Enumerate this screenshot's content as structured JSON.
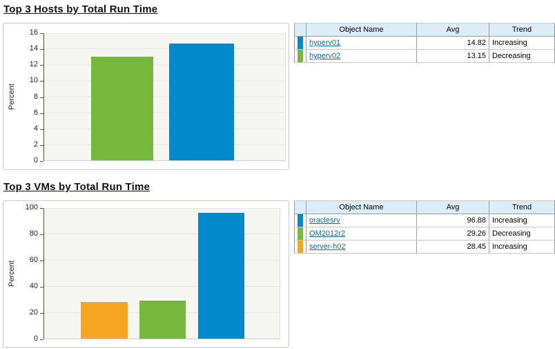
{
  "sections": [
    {
      "title": "Top 3 Hosts by Total Run Time",
      "table": {
        "headers": [
          "Object Name",
          "Avg",
          "Trend"
        ],
        "rows": [
          {
            "color": "#0089cd",
            "name": "hyperv01",
            "avg": "14.82",
            "trend": "Increasing"
          },
          {
            "color": "#76b83d",
            "name": "hyperv02",
            "avg": "13.15",
            "trend": "Decreasing"
          }
        ]
      }
    },
    {
      "title": "Top 3 VMs by Total Run Time",
      "table": {
        "headers": [
          "Object Name",
          "Avg",
          "Trend"
        ],
        "rows": [
          {
            "color": "#0089cd",
            "name": "oraclesrv",
            "avg": "96.88",
            "trend": "Increasing"
          },
          {
            "color": "#76b83d",
            "name": "OM2012r2",
            "avg": "29.26",
            "trend": "Decreasing"
          },
          {
            "color": "#f5a623",
            "name": "server-h02",
            "avg": "28.45",
            "trend": "Increasing"
          }
        ]
      }
    }
  ],
  "chart_data": [
    {
      "type": "bar",
      "title": "Top 3 Hosts by Total Run Time",
      "categories": [
        "hyperv02",
        "hyperv01"
      ],
      "values": [
        13.15,
        14.82
      ],
      "colors": [
        "#76b83d",
        "#0089cd"
      ],
      "xlabel": "",
      "ylabel": "Percent",
      "ylim": [
        0,
        16
      ],
      "yticks": [
        "16",
        "14",
        "12",
        "10",
        "8",
        "6",
        "4",
        "2",
        "0"
      ],
      "grid": true,
      "legend": "table-right"
    },
    {
      "type": "bar",
      "title": "Top 3 VMs by Total Run Time",
      "categories": [
        "server-h02",
        "OM2012r2",
        "oraclesrv"
      ],
      "values": [
        28.45,
        29.26,
        96.88
      ],
      "colors": [
        "#f5a623",
        "#76b83d",
        "#0089cd"
      ],
      "xlabel": "",
      "ylabel": "Percent",
      "ylim": [
        0,
        100
      ],
      "yticks": [
        "100",
        "80",
        "60",
        "40",
        "20",
        "0"
      ],
      "grid": true,
      "legend": "table-right"
    }
  ]
}
